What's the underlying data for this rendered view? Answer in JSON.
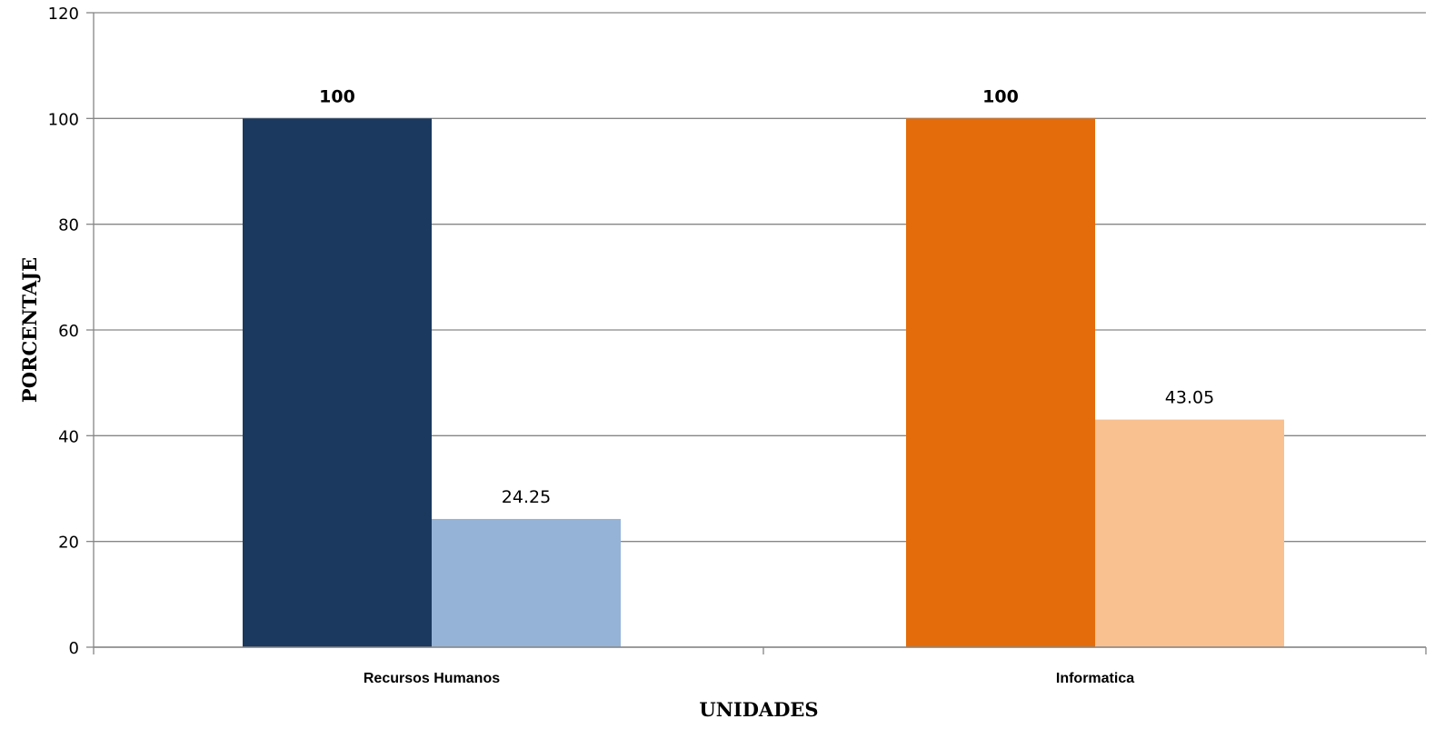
{
  "chart_data": {
    "type": "bar",
    "title": "",
    "xlabel": "UNIDADES",
    "ylabel": "PORCENTAJE",
    "ylim": [
      0,
      120
    ],
    "yticks": [
      0,
      20,
      40,
      60,
      80,
      100,
      120
    ],
    "grid": true,
    "legend": "none",
    "categories": [
      {
        "label": "Recursos Humanos",
        "bars": [
          {
            "value": 100,
            "display": "100",
            "bold_label": true,
            "color": "#1b395e"
          },
          {
            "value": 24.25,
            "display": "24.25",
            "bold_label": false,
            "color": "#95b3d7"
          }
        ]
      },
      {
        "label": "Informatica",
        "bars": [
          {
            "value": 100,
            "display": "100",
            "bold_label": true,
            "color": "#e46c0a"
          },
          {
            "value": 43.05,
            "display": "43.05",
            "bold_label": false,
            "color": "#f9c090"
          }
        ]
      }
    ],
    "colors": {
      "grid": "#868686",
      "axis": "#868686"
    }
  }
}
